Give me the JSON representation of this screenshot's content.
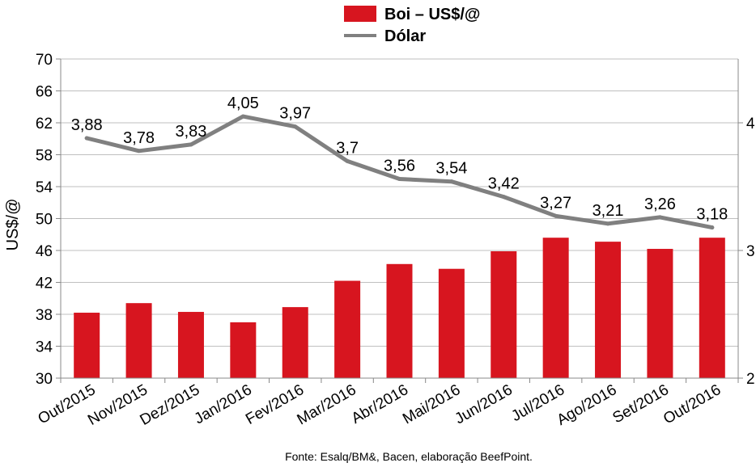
{
  "chart_data": {
    "type": "bar",
    "categories": [
      "Out/2015",
      "Nov/2015",
      "Dez/2015",
      "Jan/2016",
      "Fev/2016",
      "Mar/2016",
      "Abr/2016",
      "Mai/2016",
      "Jun/2016",
      "Jul/2016",
      "Ago/2016",
      "Set/2016",
      "Out/2016"
    ],
    "series": [
      {
        "name": "Boi – US$/@",
        "type": "bar",
        "axis": "left",
        "color": "#d7151f",
        "values": [
          38.2,
          39.4,
          38.3,
          37.0,
          38.9,
          42.2,
          44.3,
          43.7,
          45.9,
          47.6,
          47.1,
          46.2,
          47.6
        ]
      },
      {
        "name": "Dólar",
        "type": "line",
        "axis": "right",
        "color": "#808080",
        "values": [
          3.88,
          3.78,
          3.83,
          4.05,
          3.97,
          3.7,
          3.56,
          3.54,
          3.42,
          3.27,
          3.21,
          3.26,
          3.18
        ],
        "labels": [
          "3,88",
          "3,78",
          "3,83",
          "4,05",
          "3,97",
          "3,7",
          "3,56",
          "3,54",
          "3,42",
          "3,27",
          "3,21",
          "3,26",
          "3,18"
        ]
      }
    ],
    "ylabel": "US$/@",
    "ylim": [
      30,
      70
    ],
    "yticks": [
      "30",
      "34",
      "38",
      "42",
      "46",
      "50",
      "54",
      "58",
      "62",
      "66",
      "70"
    ],
    "y2lim": [
      2,
      4.5
    ],
    "y2ticks": [
      "2",
      "3",
      "4"
    ],
    "grid": true,
    "legend_position": "top-center",
    "source": "Fonte:  Esalq/BM&,  Bacen,  elaboração  BeefPoint."
  }
}
